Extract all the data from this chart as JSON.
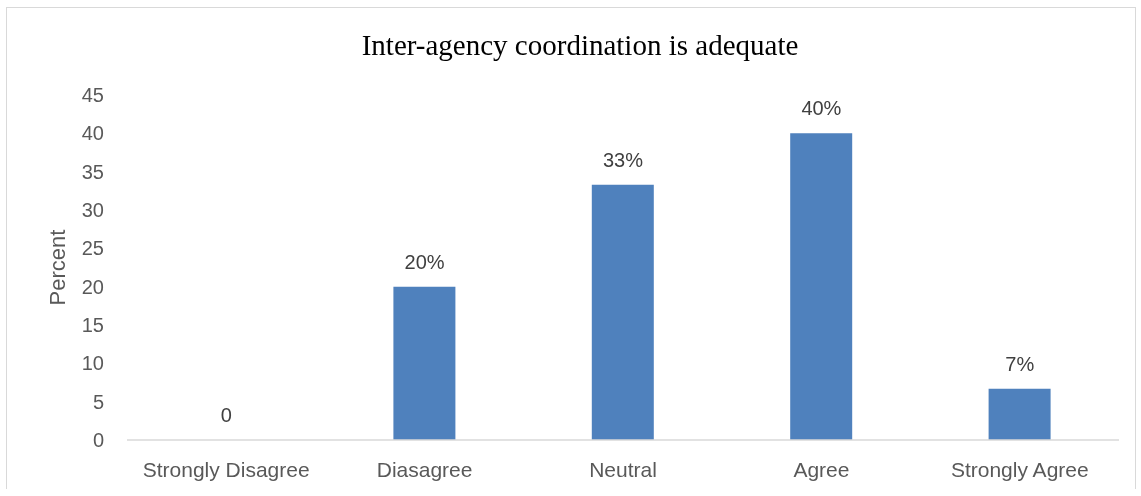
{
  "chart_data": {
    "type": "bar",
    "title": "Inter-agency coordination is adequate",
    "ylabel": "Percent",
    "categories": [
      "Strongly Disagree",
      "Diasagree",
      "Neutral",
      "Agree",
      "Strongly Agree"
    ],
    "values": [
      0,
      20,
      33.3,
      40,
      6.7
    ],
    "value_labels": [
      "0",
      "20%",
      "33%",
      "40%",
      "7%"
    ],
    "color": "#4f81bd",
    "ylim": [
      0,
      45
    ],
    "yticks": [
      0,
      5,
      10,
      15,
      20,
      25,
      30,
      35,
      40,
      45
    ]
  }
}
